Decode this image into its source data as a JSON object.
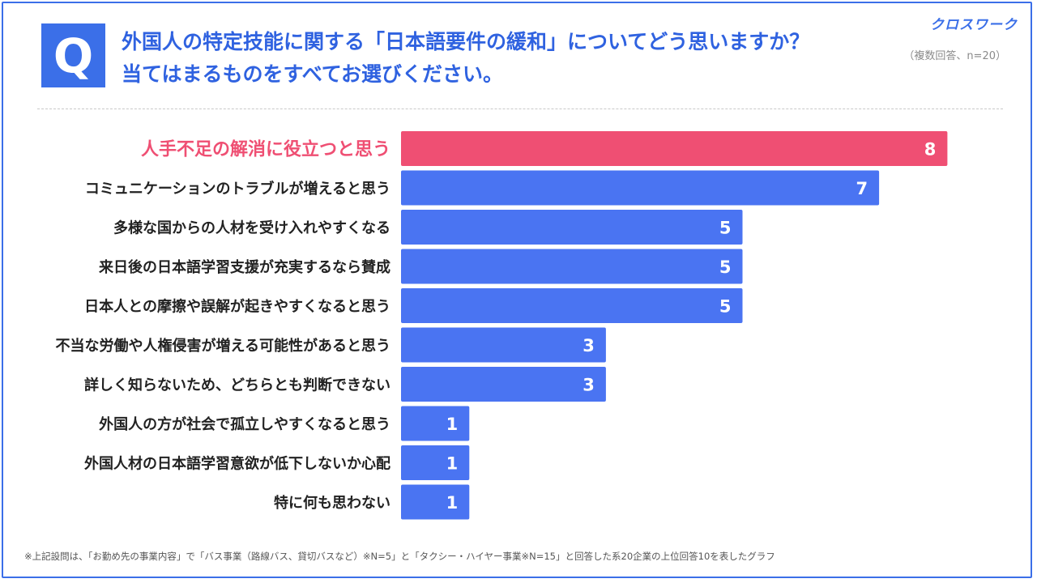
{
  "header": {
    "q_label": "Q",
    "question_lines": [
      "外国人の特定技能に関する「日本語要件の緩和」についてどう思いますか？",
      "当てはまるものをすべてお選びください。"
    ],
    "note": "（複数回答、n=20）",
    "logo": "クロスワーク"
  },
  "colors": {
    "accent": "#3b6fe8",
    "bar_primary": "#4a74f2",
    "bar_highlight": "#ef4f73",
    "label_highlight": "#ef4f73",
    "label_default": "#222222"
  },
  "chart_data": {
    "type": "bar",
    "orientation": "horizontal",
    "categories": [
      "人手不足の解消に役立つと思う",
      "コミュニケーションのトラブルが増えると思う",
      "多様な国からの人材を受け入れやすくなる",
      "来日後の日本語学習支援が充実するなら賛成",
      "日本人との摩擦や誤解が起きやすくなると思う",
      "不当な労働や人権侵害が増える可能性があると思う",
      "詳しく知らないため、どちらとも判断できない",
      "外国人の方が社会で孤立しやすくなると思う",
      "外国人材の日本語学習意欲が低下しないか心配",
      "特に何も思わない"
    ],
    "values": [
      8,
      7,
      5,
      5,
      5,
      3,
      3,
      1,
      1,
      1
    ],
    "highlight_index": 0,
    "xlim": [
      0,
      8
    ],
    "grid": false,
    "legend": "none"
  },
  "footnote": "※上記設問は、「お勤め先の事業内容」で「バス事業（路線バス、貸切バスなど）※N=5」と「タクシー・ハイヤー事業※N=15」と回答した系20企業の上位回答10を表したグラフ"
}
